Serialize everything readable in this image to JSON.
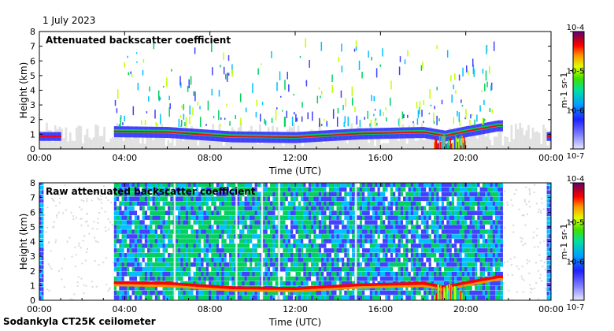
{
  "header": {
    "date": "1 July 2023"
  },
  "footer": {
    "instrument": "Sodankyla CT25K ceilometer"
  },
  "chart_data": [
    {
      "type": "heatmap",
      "title": "Attenuated backscatter coefficient",
      "xlabel": "Time (UTC)",
      "ylabel": "Height (km)",
      "xlim": [
        0,
        24
      ],
      "ylim": [
        0,
        8
      ],
      "x_ticks": [
        "00:00",
        "04:00",
        "08:00",
        "12:00",
        "16:00",
        "20:00",
        "00:00"
      ],
      "y_ticks": [
        "0",
        "1",
        "2",
        "3",
        "4",
        "5",
        "6",
        "7",
        "8"
      ],
      "colorbar": {
        "label": "m-1 sr-1",
        "scale": "log",
        "range": [
          1e-07,
          0.0001
        ],
        "tick_labels": [
          "10-7",
          "10-6",
          "10-5",
          "10-4"
        ]
      },
      "features": {
        "boundary_layer_height_km": [
          {
            "t": 0.0,
            "h": 0.85
          },
          {
            "t": 1.0,
            "h": 0.8
          },
          {
            "t": 3.5,
            "h": 1.2
          },
          {
            "t": 6.0,
            "h": 1.15
          },
          {
            "t": 9.0,
            "h": 0.85
          },
          {
            "t": 12.0,
            "h": 0.8
          },
          {
            "t": 15.0,
            "h": 1.05
          },
          {
            "t": 18.0,
            "h": 1.15
          },
          {
            "t": 19.0,
            "h": 0.9
          },
          {
            "t": 20.0,
            "h": 1.2
          },
          {
            "t": 21.5,
            "h": 1.6
          }
        ],
        "precipitation_hours": [
          18.5,
          20.0
        ],
        "data_gap_hours": [
          [
            1.0,
            3.5
          ],
          [
            21.7,
            23.8
          ]
        ]
      }
    },
    {
      "type": "heatmap",
      "title": "Raw attenuated backscatter coefficient",
      "xlabel": "Time (UTC)",
      "ylabel": "Height (km)",
      "xlim": [
        0,
        24
      ],
      "ylim": [
        0,
        8
      ],
      "x_ticks": [
        "00:00",
        "04:00",
        "08:00",
        "12:00",
        "16:00",
        "20:00",
        "00:00"
      ],
      "y_ticks": [
        "0",
        "1",
        "2",
        "3",
        "4",
        "5",
        "6",
        "7",
        "8"
      ],
      "colorbar": {
        "label": "m-1 sr-1",
        "scale": "log",
        "range": [
          1e-07,
          0.0001
        ],
        "tick_labels": [
          "10-7",
          "10-6",
          "10-5",
          "10-4"
        ]
      },
      "features": {
        "noise_hours": [
          3.5,
          21.7
        ],
        "precipitation_hours": [
          18.5,
          20.0
        ]
      }
    }
  ],
  "colors": {
    "gap": "#d9d9d9",
    "scale": [
      "#d0d0ff",
      "#4040ff",
      "#00c0ff",
      "#00d060",
      "#c0ff00",
      "#ff9000",
      "#ff0000",
      "#800040",
      "#600080"
    ]
  }
}
